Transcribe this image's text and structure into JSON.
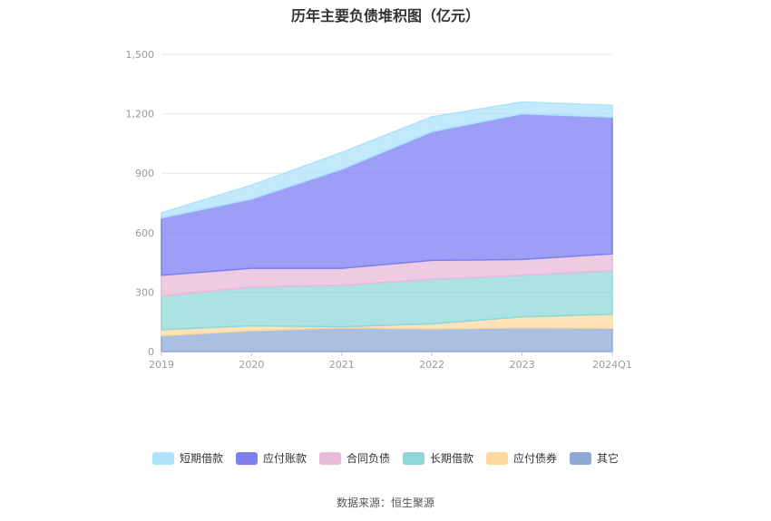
{
  "chart_data": {
    "type": "area",
    "stacked": true,
    "title": "历年主要负债堆积图（亿元）",
    "categories": [
      "2019",
      "2020",
      "2021",
      "2022",
      "2023",
      "2024Q1"
    ],
    "ylim": [
      0,
      1500
    ],
    "yticks": [
      "0",
      "300",
      "600",
      "900",
      "1,200",
      "1,500"
    ],
    "grid": true,
    "legend_position": "bottom",
    "series": [
      {
        "name": "其它",
        "color": "#8fa9d9",
        "values": [
          80,
          105,
          120,
          115,
          120,
          118
        ]
      },
      {
        "name": "应付债券",
        "color": "#fdd9a0",
        "values": [
          30,
          25,
          5,
          25,
          55,
          70
        ]
      },
      {
        "name": "长期借款",
        "color": "#8fd8d8",
        "values": [
          170,
          195,
          210,
          225,
          210,
          220
        ]
      },
      {
        "name": "合同负债",
        "color": "#e8b9d8",
        "values": [
          105,
          95,
          85,
          95,
          80,
          85
        ]
      },
      {
        "name": "应付账款",
        "color": "#7b7ff2",
        "values": [
          290,
          350,
          500,
          650,
          735,
          690
        ]
      },
      {
        "name": "短期借款",
        "color": "#aee3fb",
        "values": [
          25,
          70,
          85,
          75,
          60,
          60
        ]
      }
    ]
  },
  "legend_order": [
    "短期借款",
    "应付账款",
    "合同负债",
    "长期借款",
    "应付债券",
    "其它"
  ],
  "source_text": "数据来源：恒生聚源"
}
